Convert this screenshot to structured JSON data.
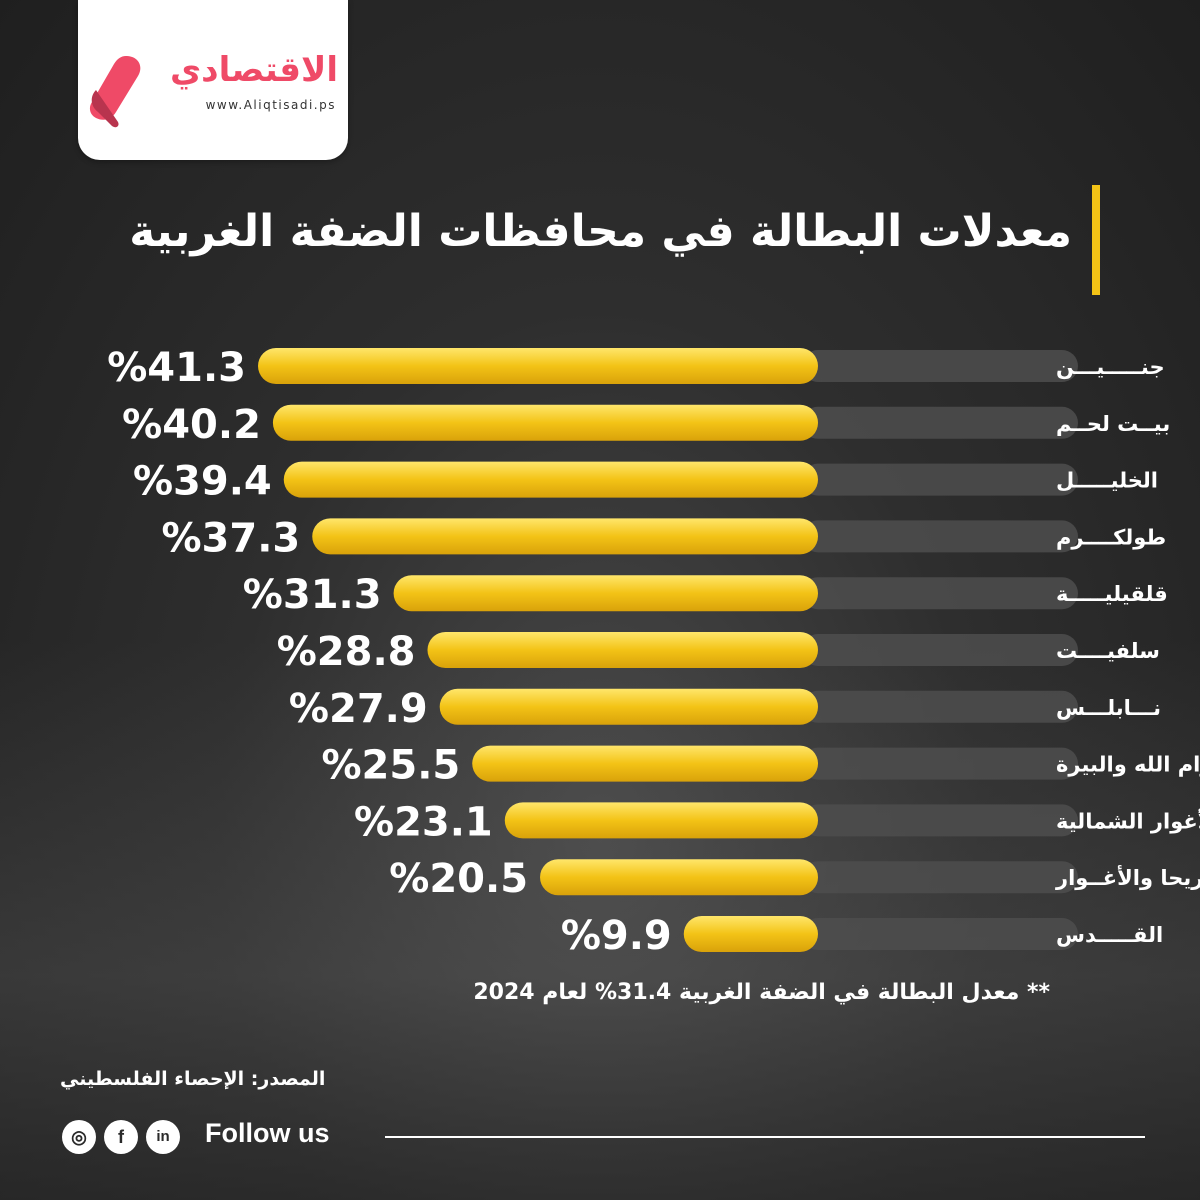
{
  "brand": {
    "name": "الاقتصادي",
    "url": "www.Aliqtisadi.ps"
  },
  "colors": {
    "bar": "#f3c316",
    "track": "#4d4d4d",
    "accent": "#ef4a67"
  },
  "chart_data": {
    "type": "bar",
    "orientation": "horizontal",
    "title": "معدلات البطالة في محافظات الضفة الغربية",
    "categories": [
      "جنـــــيـــن",
      "بيــت لحــم",
      "الخليـــــل",
      "طولكــــرم",
      "قلقيليـــــة",
      "سلفيــــت",
      "نـــابلـــس",
      "رام الله والبيرة",
      "طوباس والأغوار الشمالية",
      "أريحا والأغــوار",
      "القـــــدس"
    ],
    "values": [
      41.3,
      40.2,
      39.4,
      37.3,
      31.3,
      28.8,
      27.9,
      25.5,
      23.1,
      20.5,
      9.9
    ],
    "value_labels": [
      "%41.3",
      "%40.2",
      "%39.4",
      "%37.3",
      "%31.3",
      "%28.8",
      "%27.9",
      "%25.5",
      "%23.1",
      "%20.5",
      "%9.9"
    ],
    "unit": "%",
    "legend": "none",
    "grid": false
  },
  "footnote": "** معدل البطالة في الضفة الغربية 31.4% لعام 2024",
  "source": "المصدر: الإحصاء الفلسطيني",
  "social": {
    "follow_label": "Follow us",
    "icons": [
      "instagram-icon",
      "facebook-icon",
      "linkedin-icon"
    ]
  }
}
